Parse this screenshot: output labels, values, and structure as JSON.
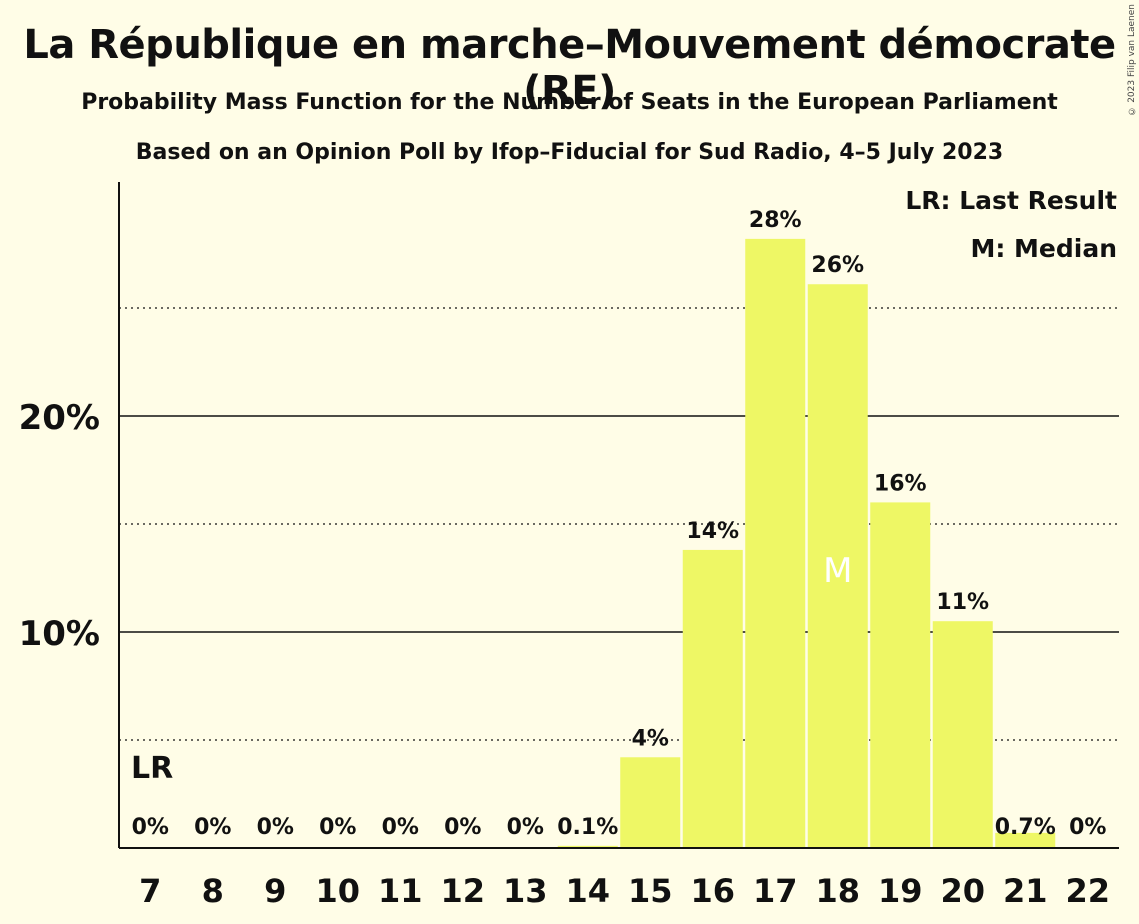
{
  "copyright": "© 2023 Filip van Laenen",
  "chart_data": {
    "type": "bar",
    "title": "La République en marche–Mouvement démocrate (RE)",
    "subtitle": "Probability Mass Function for the Number of Seats in the European Parliament",
    "subtitle2": "Based on an Opinion Poll by Ifop–Fiducial for Sud Radio, 4–5 July 2023",
    "categories": [
      "7",
      "8",
      "9",
      "10",
      "11",
      "12",
      "13",
      "14",
      "15",
      "16",
      "17",
      "18",
      "19",
      "20",
      "21",
      "22"
    ],
    "values": [
      0,
      0,
      0,
      0,
      0,
      0,
      0,
      0.1,
      4.2,
      13.8,
      28.2,
      26.1,
      16.0,
      10.5,
      0.7,
      0
    ],
    "labels": [
      "0%",
      "0%",
      "0%",
      "0%",
      "0%",
      "0%",
      "0%",
      "0.1%",
      "4%",
      "14%",
      "28%",
      "26%",
      "16%",
      "11%",
      "0.7%",
      "0%"
    ],
    "ylim": [
      0,
      30
    ],
    "yticks": [
      {
        "value": 10,
        "label": "10%"
      },
      {
        "value": 20,
        "label": "20%"
      }
    ],
    "minor_gridlines": [
      5,
      15,
      25
    ],
    "last_result": {
      "category": "7",
      "label": "LR"
    },
    "median": {
      "category": "18",
      "label": "M"
    },
    "legend": [
      "LR: Last Result",
      "M: Median"
    ],
    "legend_position": "top-right",
    "colors": {
      "bar": "#eef765",
      "background": "#fffde7",
      "axis": "#111111",
      "median_text": "#ffffff"
    }
  }
}
